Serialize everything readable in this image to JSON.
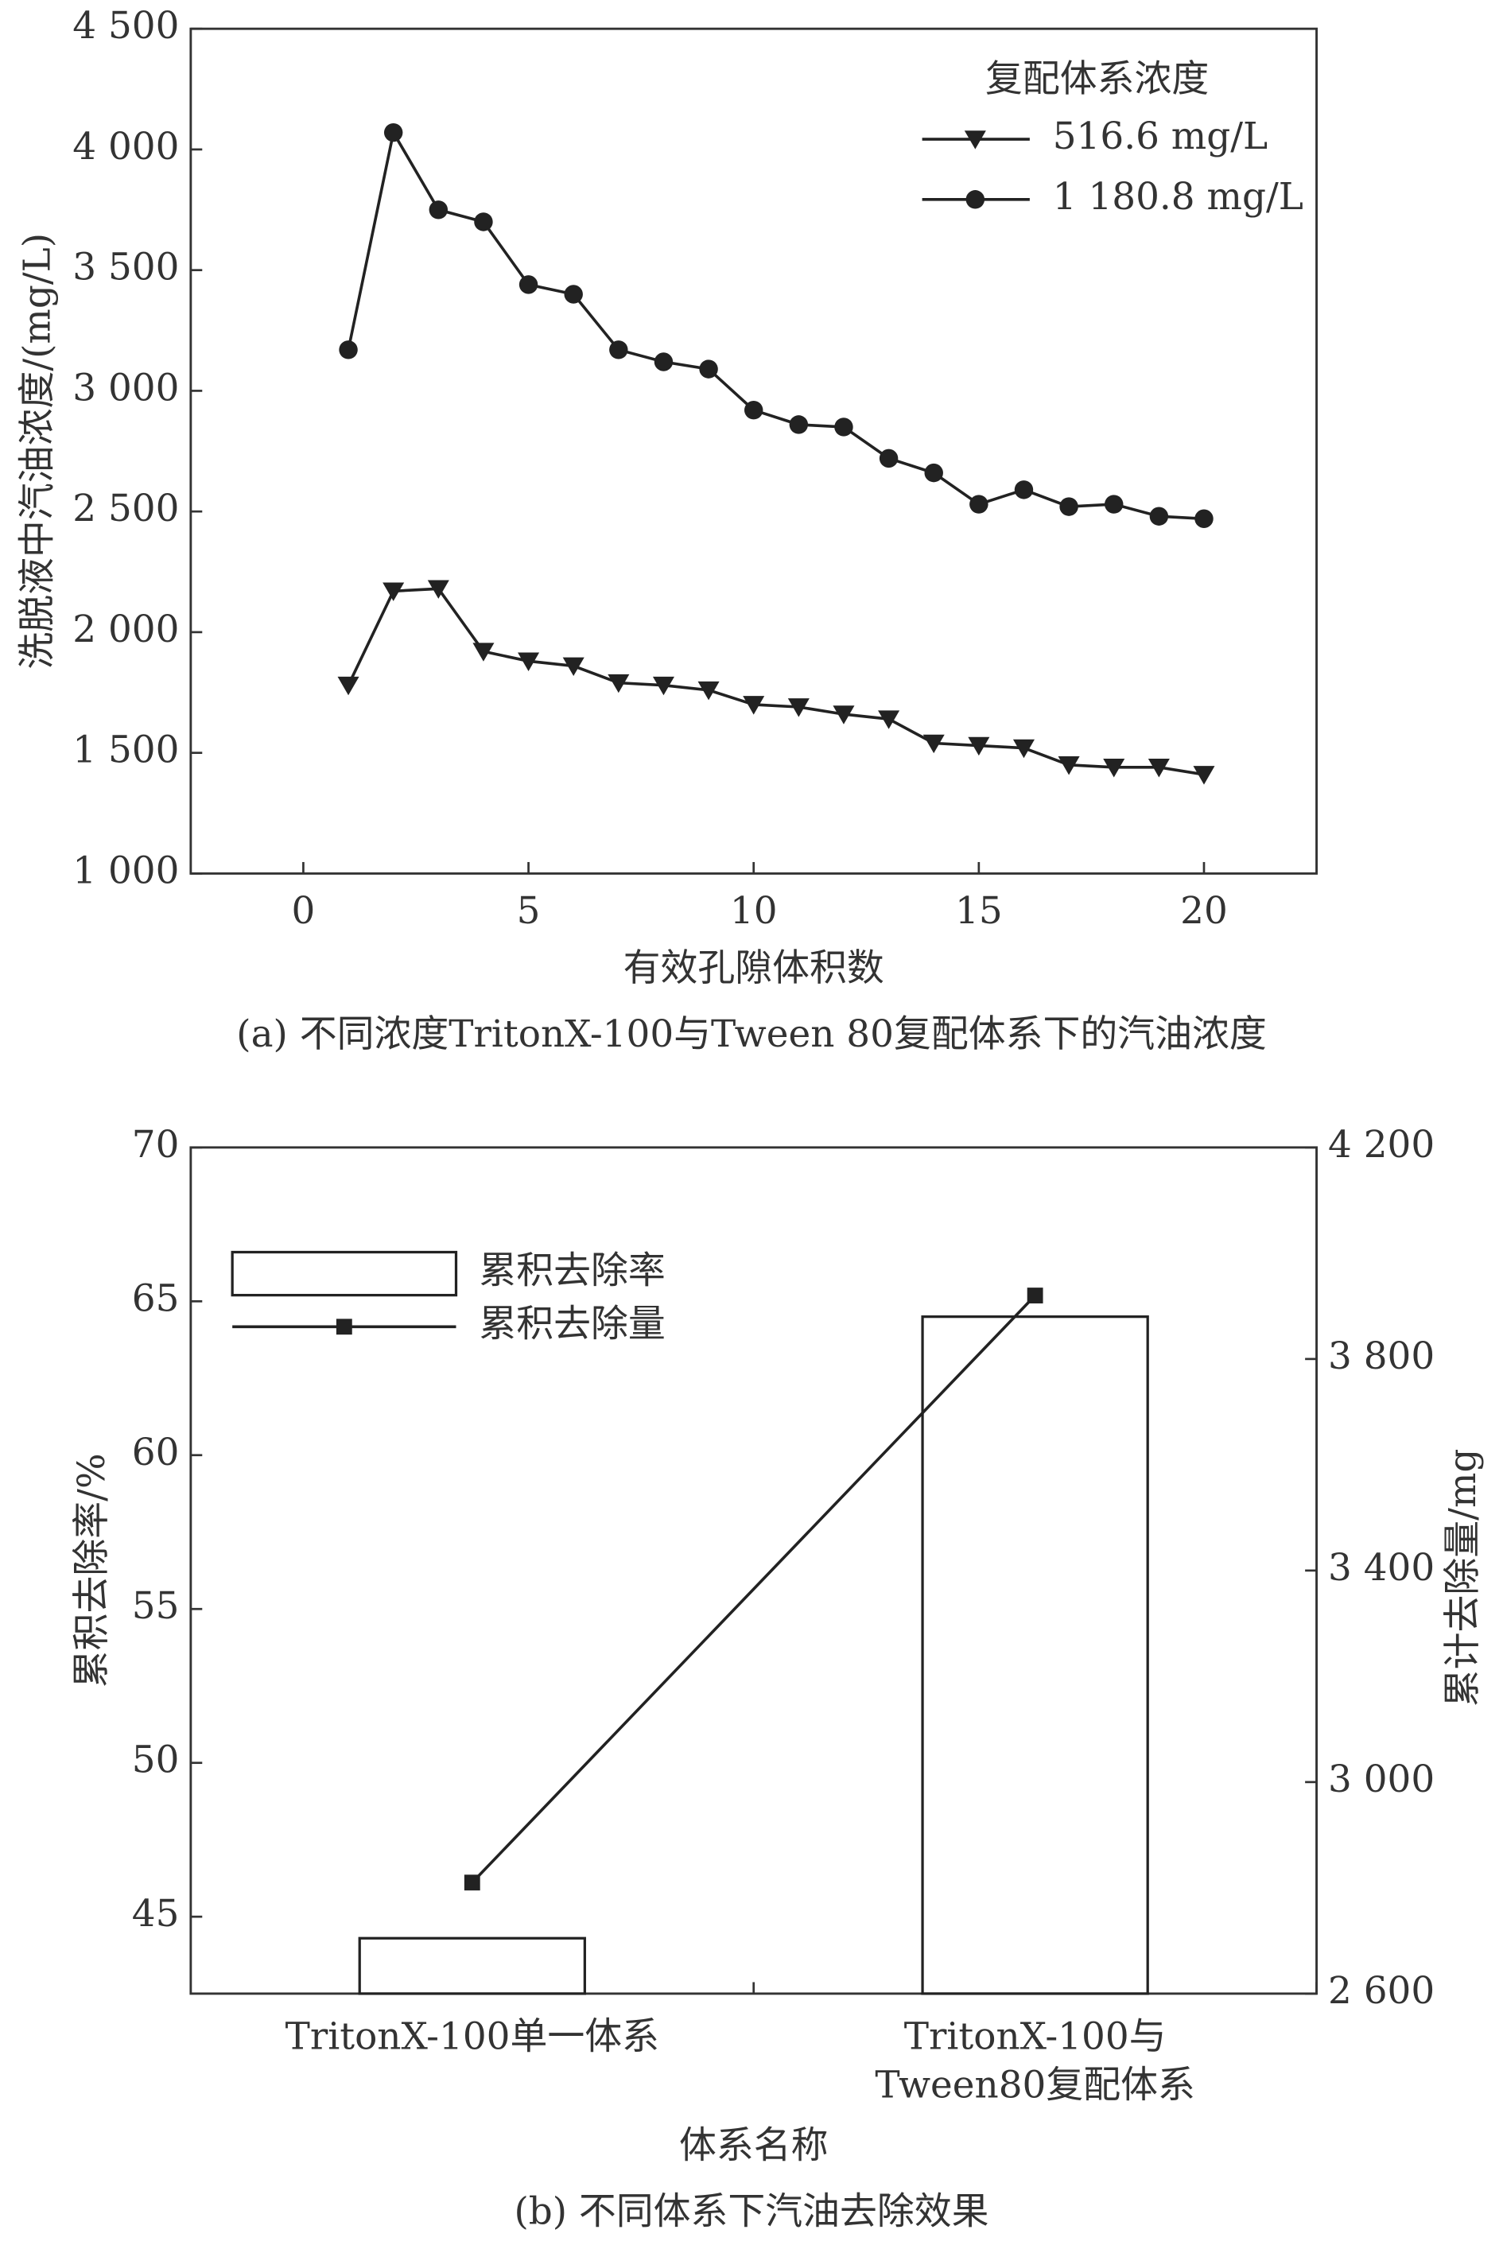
{
  "chart_data": [
    {
      "type": "line",
      "xlabel": "有效孔隙体积数",
      "ylabel": "洗脱液中汽油浓度/(mg/L)",
      "caption": "(a) 不同浓度TritonX-100与Tween 80复配体系下的汽油浓度",
      "legend_title": "复配体系浓度",
      "legend": "upper right",
      "x": [
        1,
        2,
        3,
        4,
        5,
        6,
        7,
        8,
        9,
        10,
        11,
        12,
        13,
        14,
        15,
        16,
        17,
        18,
        19,
        20
      ],
      "series": [
        {
          "name": "516.6 mg/L",
          "color": "#222222",
          "marker": "triangle-down",
          "values": [
            1780,
            2170,
            2180,
            1920,
            1880,
            1860,
            1790,
            1780,
            1760,
            1700,
            1690,
            1660,
            1640,
            1540,
            1530,
            1520,
            1450,
            1440,
            1440,
            1410
          ]
        },
        {
          "name": "1 180.8 mg/L",
          "color": "#222222",
          "marker": "circle",
          "values": [
            3170,
            4070,
            3750,
            3700,
            3440,
            3400,
            3170,
            3120,
            3090,
            2920,
            2860,
            2850,
            2720,
            2660,
            2530,
            2590,
            2520,
            2530,
            2480,
            2470
          ]
        }
      ],
      "xlim": [
        -2.5,
        22.5
      ],
      "xticks": [
        0,
        5,
        10,
        15,
        20
      ],
      "ylim": [
        1000,
        4500
      ],
      "yticks": [
        {
          "value": 1000,
          "label": "1 000"
        },
        {
          "value": 1500,
          "label": "1 500"
        },
        {
          "value": 2000,
          "label": "2 000"
        },
        {
          "value": 2500,
          "label": "2 500"
        },
        {
          "value": 3000,
          "label": "3 000"
        },
        {
          "value": 3500,
          "label": "3 500"
        },
        {
          "value": 4000,
          "label": "4 000"
        },
        {
          "value": 4500,
          "label": "4 500"
        }
      ]
    },
    {
      "type": "bar",
      "xlabel": "体系名称",
      "ylabel": "累积去除率/%",
      "y2label": "累计去除量/mg",
      "caption": "(b) 不同体系下汽油去除效果",
      "legend": "upper left",
      "categories": [
        "TritonX-100单一体系",
        "TritonX-100与\nTween80复配体系"
      ],
      "series": [
        {
          "name": "累积去除率",
          "type": "bar",
          "color": "#ffffff",
          "values": [
            44.3,
            64.5
          ]
        },
        {
          "name": "累积去除量",
          "type": "line",
          "axis": "y2",
          "color": "#222222",
          "marker": "square",
          "values": [
            2810,
            3920
          ]
        }
      ],
      "ylim": [
        42.5,
        70
      ],
      "yticks": [
        45,
        50,
        55,
        60,
        65,
        70
      ],
      "y2lim": [
        2600,
        4200
      ],
      "y2ticks": [
        {
          "value": 2600,
          "label": "2 600"
        },
        {
          "value": 3000,
          "label": "3 000"
        },
        {
          "value": 3400,
          "label": "3 400"
        },
        {
          "value": 3800,
          "label": "3 800"
        },
        {
          "value": 4200,
          "label": "4 200"
        }
      ]
    }
  ]
}
